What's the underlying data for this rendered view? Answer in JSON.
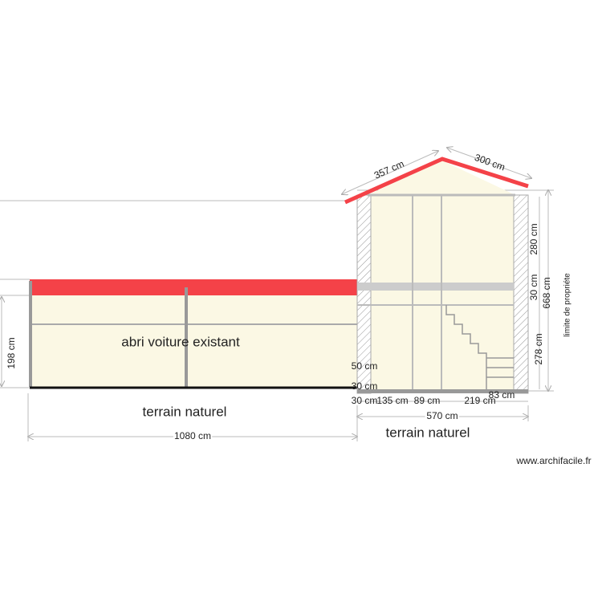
{
  "dimensions": {
    "roof_left": "357 cm",
    "roof_right": "300 cm",
    "upper_floor": "280 cm",
    "slab": "30 cm",
    "total_height": "668 cm",
    "lower_floor": "278 cm",
    "shelter_height": "198 cm",
    "foundation_top": "50 cm",
    "foundation_mid": "30 cm",
    "foundation_bottom": "30 cm",
    "span_1": "135 cm",
    "span_2": "89 cm",
    "span_3": "219 cm",
    "stair": "83 cm",
    "house_width": "570 cm",
    "shelter_width": "1080 cm"
  },
  "labels": {
    "property_limit": "limite de propriéte",
    "shelter": "abri voiture existant",
    "ground_left": "terrain naturel",
    "ground_right": "terrain naturel"
  },
  "footer": {
    "watermark": "www.archifacile.fr"
  }
}
